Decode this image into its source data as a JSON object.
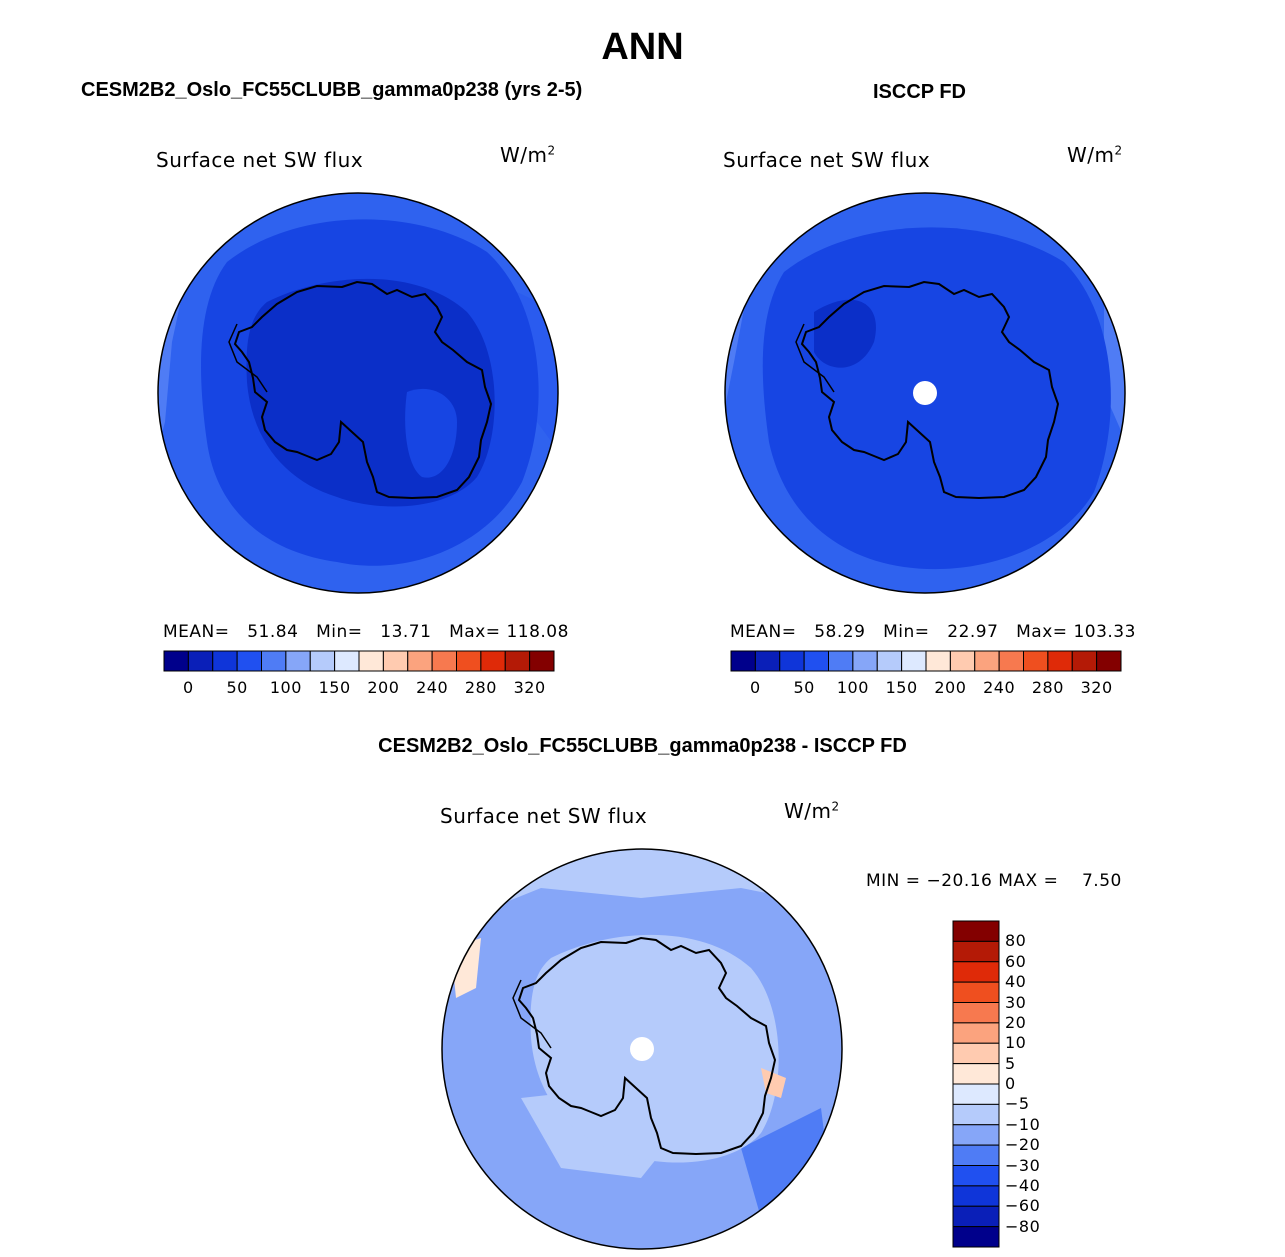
{
  "main_title": "ANN",
  "panels": [
    {
      "title": "CESM2B2_Oslo_FC55CLUBB_gamma0p238 (yrs 2-5)",
      "variable": "Surface net SW flux",
      "units": "W/m",
      "units_sup": "2",
      "stats": {
        "mean_label": "MEAN=",
        "mean": "51.84",
        "min_label": "Min=",
        "min": "13.71",
        "max_label": "Max=",
        "max": "118.08"
      },
      "pole_hole": false
    },
    {
      "title": "ISCCP FD",
      "variable": "Surface net SW flux",
      "units": "W/m",
      "units_sup": "2",
      "stats": {
        "mean_label": "MEAN=",
        "mean": "58.29",
        "min_label": "Min=",
        "min": "22.97",
        "max_label": "Max=",
        "max": "103.33"
      },
      "pole_hole": true
    }
  ],
  "horizontal_colorbar": {
    "colors": [
      "#00008b",
      "#0a1fb8",
      "#0f35d9",
      "#2050f0",
      "#4f7cf5",
      "#86a6f8",
      "#b5cbfb",
      "#dde9ff",
      "#ffe8d8",
      "#ffcbb0",
      "#fba37e",
      "#f7794f",
      "#ef4f1f",
      "#df2a08",
      "#b41a06",
      "#830000"
    ],
    "tick_labels": [
      "0",
      "50",
      "100",
      "150",
      "200",
      "240",
      "280",
      "320"
    ]
  },
  "diff_panel": {
    "title": "CESM2B2_Oslo_FC55CLUBB_gamma0p238 - ISCCP FD",
    "variable": "Surface net SW flux",
    "units": "W/m",
    "units_sup": "2",
    "minmax": "MIN = −20.16 MAX =    7.50",
    "pole_hole": true
  },
  "vertical_colorbar": {
    "colors_top_to_bottom": [
      "#830000",
      "#b41a06",
      "#df2a08",
      "#ef4f1f",
      "#f7794f",
      "#fba37e",
      "#ffcbb0",
      "#ffe8d8",
      "#dde9ff",
      "#b5cbfb",
      "#86a6f8",
      "#4f7cf5",
      "#2050f0",
      "#0f35d9",
      "#0a1fb8",
      "#00008b"
    ],
    "tick_labels": [
      "80",
      "60",
      "40",
      "30",
      "20",
      "10",
      "5",
      "0",
      "−5",
      "−10",
      "−20",
      "−30",
      "−40",
      "−60",
      "−80"
    ]
  }
}
